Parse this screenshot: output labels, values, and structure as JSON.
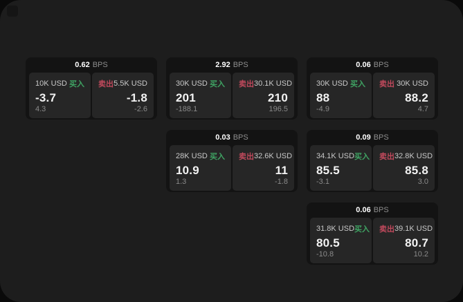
{
  "labels": {
    "buy": "买入",
    "sell": "卖出",
    "bps_suffix": "BPS"
  },
  "colors": {
    "buy_green": "#3fa363",
    "sell_red": "#c0495c",
    "window_bg": "#1d1d1d",
    "card_bg": "#131313",
    "panel_bg": "#262626"
  },
  "cards": [
    {
      "row": 1,
      "col": 1,
      "bps": "0.62",
      "buy": {
        "amount": "10K USD",
        "price": "-3.7",
        "delta": "4.3"
      },
      "sell": {
        "amount": "5.5K USD",
        "price": "-1.8",
        "delta": "-2.6"
      }
    },
    {
      "row": 1,
      "col": 2,
      "bps": "2.92",
      "buy": {
        "amount": "30K USD",
        "price": "201",
        "delta": "-188.1"
      },
      "sell": {
        "amount": "30.1K USD",
        "price": "210",
        "delta": "196.5"
      }
    },
    {
      "row": 1,
      "col": 3,
      "bps": "0.06",
      "buy": {
        "amount": "30K USD",
        "price": "88",
        "delta": "-4.9"
      },
      "sell": {
        "amount": "30K USD",
        "price": "88.2",
        "delta": "4.7"
      }
    },
    {
      "row": 2,
      "col": 2,
      "bps": "0.03",
      "buy": {
        "amount": "28K USD",
        "price": "10.9",
        "delta": "1.3"
      },
      "sell": {
        "amount": "32.6K USD",
        "price": "11",
        "delta": "-1.8"
      }
    },
    {
      "row": 2,
      "col": 3,
      "bps": "0.09",
      "buy": {
        "amount": "34.1K USD",
        "price": "85.5",
        "delta": "-3.1"
      },
      "sell": {
        "amount": "32.8K USD",
        "price": "85.8",
        "delta": "3.0"
      }
    },
    {
      "row": 3,
      "col": 3,
      "bps": "0.06",
      "buy": {
        "amount": "31.8K USD",
        "price": "80.5",
        "delta": "-10.8"
      },
      "sell": {
        "amount": "39.1K USD",
        "price": "80.7",
        "delta": "10.2"
      }
    }
  ]
}
